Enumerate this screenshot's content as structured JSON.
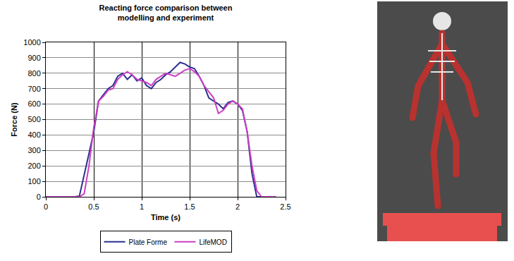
{
  "chart_data": {
    "type": "line",
    "title": "Reacting force comparison between modelling and experiment",
    "x_label": "Time (s)",
    "y_label": "Force (N)",
    "x": [
      0,
      0.1,
      0.2,
      0.3,
      0.35,
      0.4,
      0.45,
      0.5,
      0.55,
      0.6,
      0.65,
      0.7,
      0.75,
      0.8,
      0.85,
      0.9,
      0.95,
      1.0,
      1.05,
      1.1,
      1.15,
      1.2,
      1.25,
      1.3,
      1.35,
      1.4,
      1.45,
      1.5,
      1.55,
      1.6,
      1.65,
      1.7,
      1.75,
      1.8,
      1.85,
      1.9,
      1.95,
      2.0,
      2.05,
      2.1,
      2.15,
      2.2,
      2.25,
      2.3,
      2.4
    ],
    "series": [
      {
        "name": "Plate Forme",
        "color": "#2b2f8f",
        "values": [
          0,
          0,
          0,
          0,
          5,
          150,
          280,
          420,
          620,
          660,
          700,
          720,
          780,
          800,
          760,
          790,
          750,
          770,
          720,
          700,
          740,
          760,
          790,
          810,
          840,
          870,
          860,
          840,
          830,
          780,
          720,
          640,
          620,
          600,
          570,
          610,
          620,
          600,
          560,
          420,
          150,
          0,
          0,
          0,
          0
        ]
      },
      {
        "name": "LifeMOD",
        "color": "#cc3fc4",
        "values": [
          0,
          0,
          0,
          0,
          0,
          20,
          200,
          450,
          620,
          650,
          690,
          700,
          760,
          790,
          810,
          790,
          760,
          750,
          740,
          720,
          760,
          780,
          800,
          790,
          780,
          800,
          820,
          830,
          810,
          780,
          720,
          680,
          640,
          540,
          560,
          600,
          620,
          600,
          570,
          420,
          200,
          40,
          0,
          0,
          0
        ]
      }
    ],
    "xlim": [
      0,
      2.5
    ],
    "xticks": [
      0,
      0.5,
      1,
      1.5,
      2,
      2.5
    ],
    "ylim": [
      0,
      1000
    ],
    "yticks": [
      0,
      100,
      200,
      300,
      400,
      500,
      600,
      700,
      800,
      900,
      1000
    ],
    "grid": true,
    "legend": "bottom"
  }
}
